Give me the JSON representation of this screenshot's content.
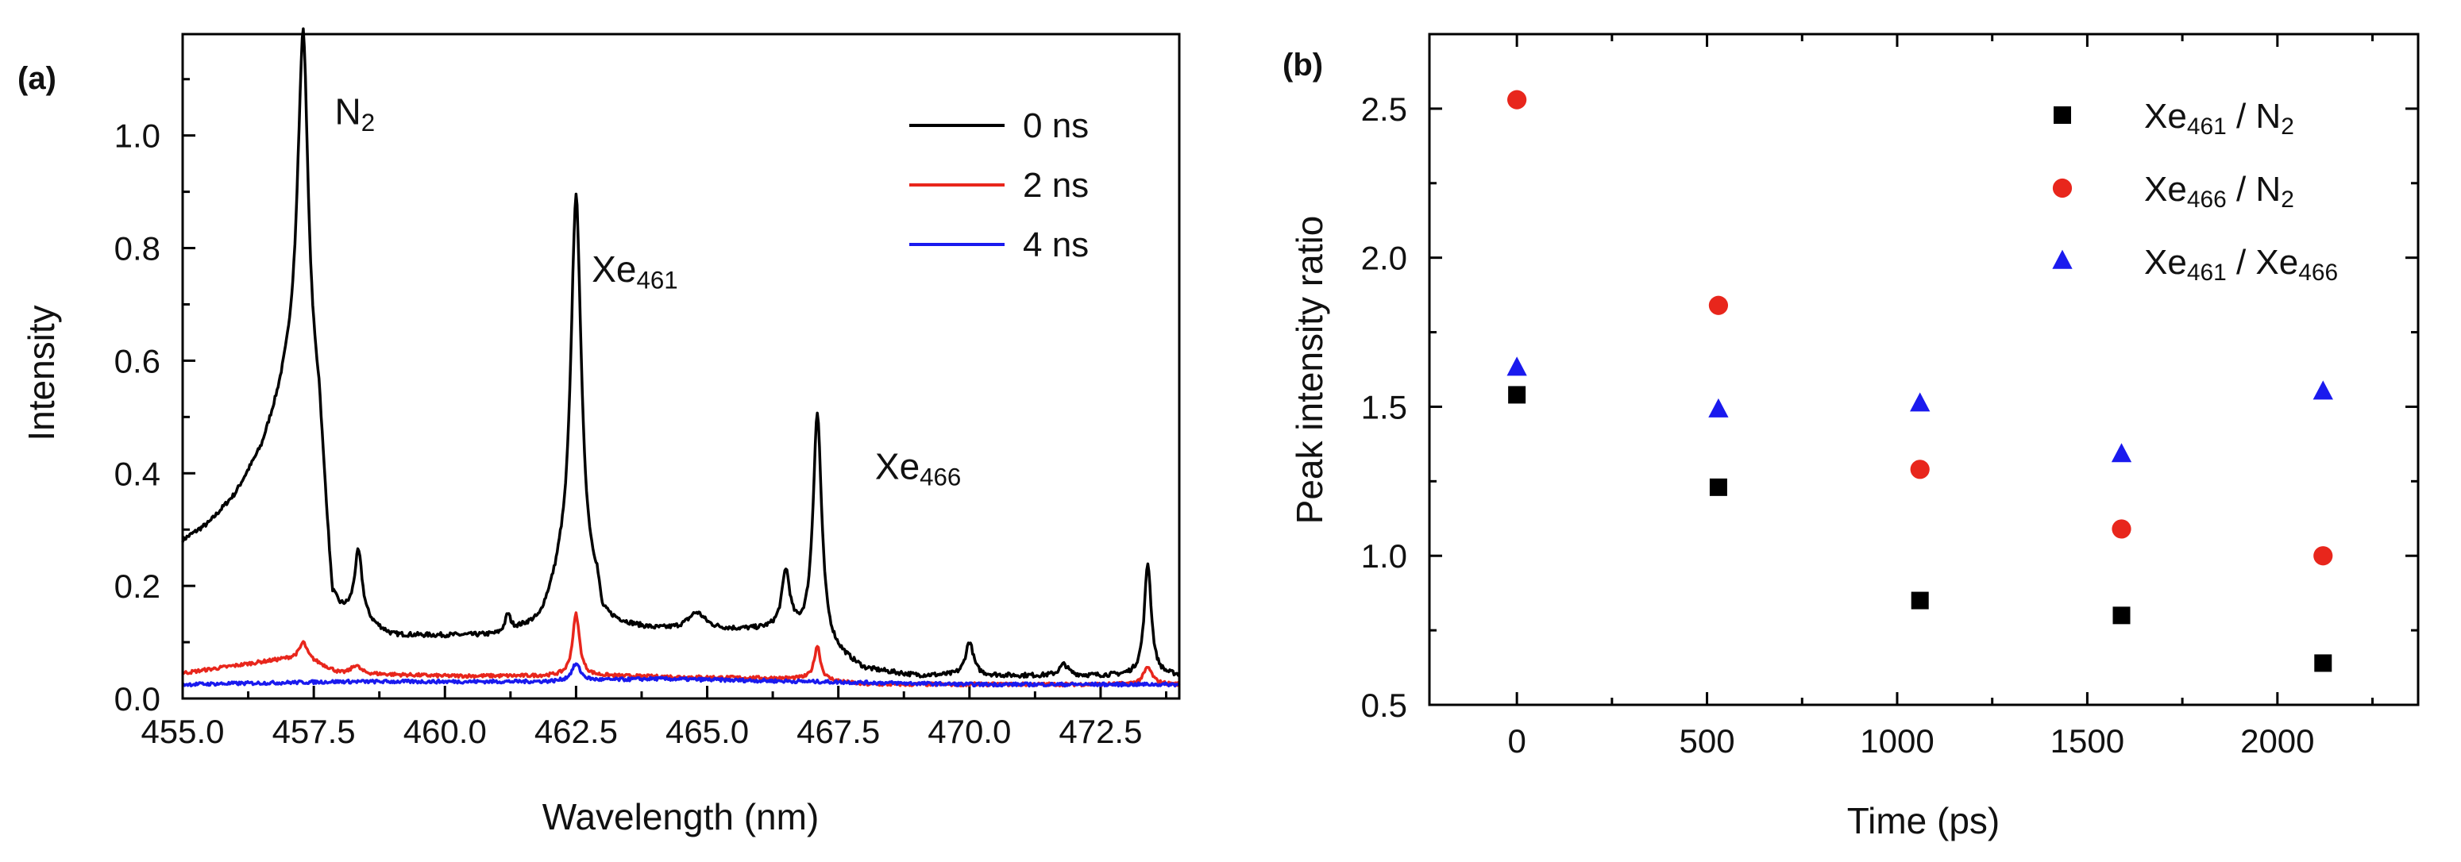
{
  "chart_data": [
    {
      "panel_label": "(a)",
      "type": "line",
      "xlabel": "Wavelength (nm)",
      "ylabel": "Intensity",
      "xlim": [
        455.0,
        474.0
      ],
      "ylim": [
        0.0,
        1.18
      ],
      "xticks": [
        "455.0",
        "457.5",
        "460.0",
        "462.5",
        "465.0",
        "467.5",
        "470.0",
        "472.5"
      ],
      "yticks": [
        "0.0",
        "0.2",
        "0.4",
        "0.6",
        "0.8",
        "1.0"
      ],
      "legend_position": "top-right",
      "annotations": [
        {
          "text": "N",
          "sub": "2",
          "x": 457.9,
          "y": 1.02
        },
        {
          "text": "Xe",
          "sub": "461",
          "x": 462.8,
          "y": 0.74
        },
        {
          "text": "Xe",
          "sub": "466",
          "x": 468.2,
          "y": 0.39
        }
      ],
      "series": [
        {
          "name": "0 ns",
          "color": "#000000",
          "baseline": [
            [
              455.0,
              0.28
            ],
            [
              455.5,
              0.31
            ],
            [
              456.0,
              0.36
            ],
            [
              456.5,
              0.44
            ],
            [
              456.8,
              0.52
            ],
            [
              457.0,
              0.58
            ],
            [
              457.2,
              0.64
            ],
            [
              457.6,
              0.5
            ],
            [
              457.85,
              0.17
            ],
            [
              458.0,
              0.15
            ],
            [
              458.5,
              0.13
            ],
            [
              459.0,
              0.11
            ],
            [
              460.0,
              0.11
            ],
            [
              461.0,
              0.11
            ],
            [
              461.8,
              0.13
            ],
            [
              462.2,
              0.2
            ],
            [
              462.9,
              0.18
            ],
            [
              463.0,
              0.13
            ],
            [
              464.0,
              0.12
            ],
            [
              466.0,
              0.12
            ],
            [
              466.5,
              0.12
            ],
            [
              467.6,
              0.07
            ],
            [
              468.0,
              0.05
            ],
            [
              469.0,
              0.04
            ],
            [
              474.0,
              0.04
            ]
          ],
          "peaks": [
            [
              457.3,
              0.58,
              0.11
            ],
            [
              458.35,
              0.12,
              0.09
            ],
            [
              461.2,
              0.03,
              0.06
            ],
            [
              462.5,
              0.7,
              0.12
            ],
            [
              464.8,
              0.03,
              0.2
            ],
            [
              466.5,
              0.1,
              0.09
            ],
            [
              467.1,
              0.41,
              0.1
            ],
            [
              470.0,
              0.06,
              0.09
            ],
            [
              471.8,
              0.02,
              0.1
            ],
            [
              473.4,
              0.2,
              0.08
            ]
          ]
        },
        {
          "name": "2 ns",
          "color": "#e8261c",
          "baseline": [
            [
              455.0,
              0.045
            ],
            [
              456.5,
              0.065
            ],
            [
              457.3,
              0.075
            ],
            [
              458.0,
              0.045
            ],
            [
              460.0,
              0.04
            ],
            [
              462.0,
              0.04
            ],
            [
              463.0,
              0.04
            ],
            [
              467.0,
              0.035
            ],
            [
              468.0,
              0.025
            ],
            [
              472.0,
              0.025
            ],
            [
              474.0,
              0.025
            ]
          ],
          "peaks": [
            [
              457.3,
              0.025,
              0.08
            ],
            [
              458.3,
              0.015,
              0.1
            ],
            [
              462.5,
              0.11,
              0.08
            ],
            [
              467.1,
              0.06,
              0.07
            ],
            [
              473.4,
              0.03,
              0.1
            ]
          ]
        },
        {
          "name": "4 ns",
          "color": "#1a1aee",
          "baseline": [
            [
              455.0,
              0.025
            ],
            [
              458.0,
              0.03
            ],
            [
              462.0,
              0.03
            ],
            [
              464.0,
              0.035
            ],
            [
              467.0,
              0.03
            ],
            [
              470.0,
              0.025
            ],
            [
              474.0,
              0.025
            ]
          ],
          "peaks": [
            [
              462.5,
              0.03,
              0.1
            ]
          ]
        }
      ]
    },
    {
      "panel_label": "(b)",
      "type": "scatter",
      "xlabel": "Time (ps)",
      "ylabel": "Peak intensity ratio",
      "xlim": [
        -230,
        2370
      ],
      "ylim": [
        0.5,
        2.75
      ],
      "xticks": [
        "0",
        "500",
        "1000",
        "1500",
        "2000"
      ],
      "yticks": [
        "0.5",
        "1.0",
        "1.5",
        "2.0",
        "2.5"
      ],
      "legend_position": "top-right",
      "x": [
        0,
        530,
        1060,
        1590,
        2120
      ],
      "series": [
        {
          "name": "Xe",
          "sub1": "461",
          "mid": " / N",
          "sub2": "2",
          "marker": "square",
          "color": "#000000",
          "values": [
            1.54,
            1.23,
            0.85,
            0.8,
            0.64
          ]
        },
        {
          "name": "Xe",
          "sub1": "466",
          "mid": " / N",
          "sub2": "2",
          "marker": "circle",
          "color": "#e8261c",
          "values": [
            2.53,
            1.84,
            1.29,
            1.09,
            1.0
          ]
        },
        {
          "name": "Xe",
          "sub1": "461",
          "mid": " / Xe",
          "sub2": "466",
          "marker": "triangle",
          "color": "#1a1aee",
          "values": [
            1.63,
            1.49,
            1.51,
            1.34,
            1.55
          ]
        }
      ]
    }
  ]
}
